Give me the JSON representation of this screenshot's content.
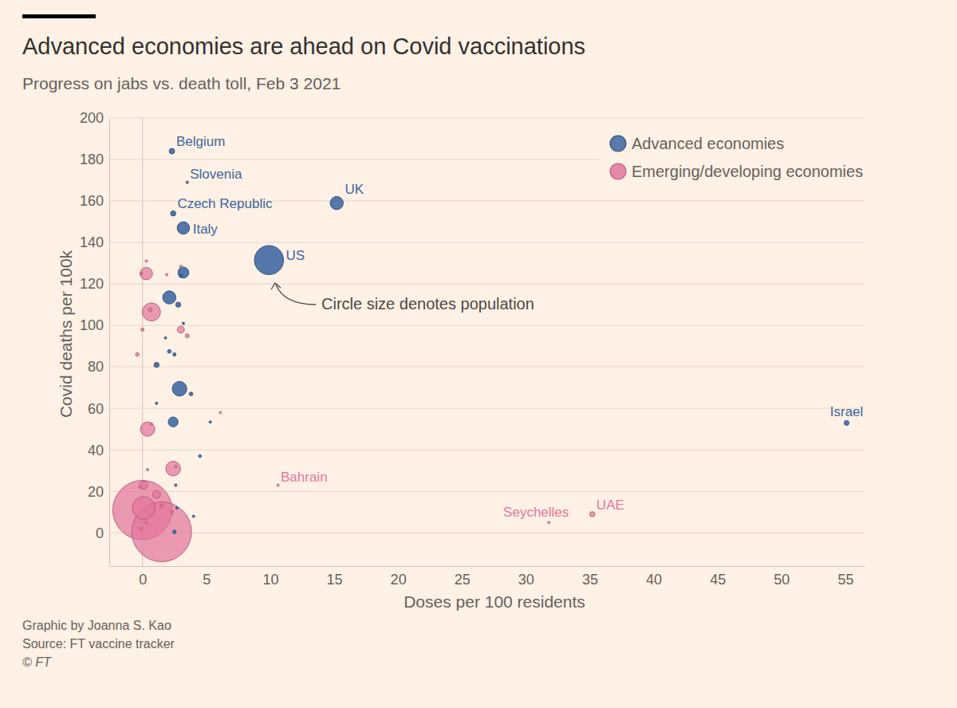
{
  "chart_data": {
    "type": "scatter",
    "title": "Advanced economies are ahead on Covid vaccinations",
    "subtitle": "Progress on jabs vs. death toll, Feb 3 2021",
    "x_label": "Doses per 100 residents",
    "y_label": "Covid deaths per 100k",
    "annotation": "Circle size denotes population",
    "footer": [
      "Graphic by Joanna S. Kao",
      "Source: FT vaccine tracker",
      "© FT"
    ],
    "xlim": [
      -2.6,
      56.5
    ],
    "ylim": [
      -16,
      200
    ],
    "xticks": [
      0,
      5,
      10,
      15,
      20,
      25,
      30,
      35,
      40,
      45,
      50,
      55
    ],
    "yticks": [
      0,
      20,
      40,
      60,
      80,
      100,
      120,
      140,
      160,
      180,
      200
    ],
    "grid": true,
    "legend": "top-right",
    "series": [
      {
        "name": "Advanced economies",
        "color": "#3d65a0",
        "x": [
          9.9,
          15.2,
          2.9,
          2.1,
          3.2,
          3.2,
          2.4,
          2.3,
          2.4,
          1.1,
          2.8,
          55.1,
          2.1,
          2.5,
          3.8,
          3.0,
          4.5,
          3.5,
          2.7,
          3.2,
          2.6,
          1.1,
          1.8,
          4.0,
          5.3,
          2.5
        ],
        "values": [
          131.5,
          159,
          69.5,
          113.5,
          147,
          125.5,
          53.5,
          184,
          154,
          81,
          110,
          53,
          87.5,
          86,
          67,
          124,
          37,
          169,
          12,
          101,
          23,
          62.5,
          94,
          8,
          53.5,
          0.5
        ],
        "size": [
          331,
          67,
          83,
          67,
          60,
          47,
          38,
          11.5,
          10.7,
          10,
          10,
          9.2,
          5,
          4,
          5,
          5,
          3,
          2.1,
          2,
          2,
          1,
          1,
          0.5,
          0.5,
          0.3,
          5
        ],
        "labels": [
          "US",
          "UK",
          null,
          null,
          "Italy",
          null,
          null,
          "Belgium",
          "Czech Republic",
          null,
          null,
          "Israel",
          null,
          null,
          null,
          null,
          null,
          "Slovenia",
          null,
          null,
          null,
          null,
          null,
          null,
          null,
          null
        ]
      },
      {
        "name": "Emerging/developing economies",
        "color": "#e3769d",
        "x": [
          0.0,
          1.5,
          0.1,
          0.7,
          2.4,
          0.4,
          0.3,
          3.0,
          0.1,
          1.1,
          35.2,
          0.6,
          3.5,
          1.5,
          -0.4,
          0.0,
          2.3,
          -0.1,
          3.0,
          6.1,
          0.3,
          10.6,
          0.3,
          -0.1,
          -0.2,
          1.9,
          0.7,
          0.4,
          2.6,
          31.8
        ],
        "values": [
          11,
          0.5,
          12,
          106.5,
          31,
          50,
          125,
          98,
          23,
          18.5,
          9,
          107.5,
          95,
          13,
          86,
          98,
          10,
          2,
          128.5,
          58,
          5,
          23,
          131,
          125,
          22,
          124.5,
          52.5,
          30.5,
          32,
          5
        ],
        "size": [
          1380,
          1400,
          200,
          128,
          84,
          80,
          60,
          19,
          25,
          25,
          10,
          6,
          6,
          5,
          5,
          4,
          4,
          3,
          2,
          2,
          2,
          1.7,
          1,
          1,
          1,
          0.5,
          0.5,
          0.5,
          0.3,
          0.1
        ],
        "labels": [
          null,
          null,
          null,
          null,
          null,
          null,
          null,
          null,
          null,
          null,
          "UAE",
          null,
          null,
          null,
          null,
          null,
          null,
          null,
          null,
          null,
          null,
          "Bahrain",
          null,
          null,
          null,
          null,
          null,
          null,
          null,
          "Seychelles"
        ]
      }
    ]
  }
}
